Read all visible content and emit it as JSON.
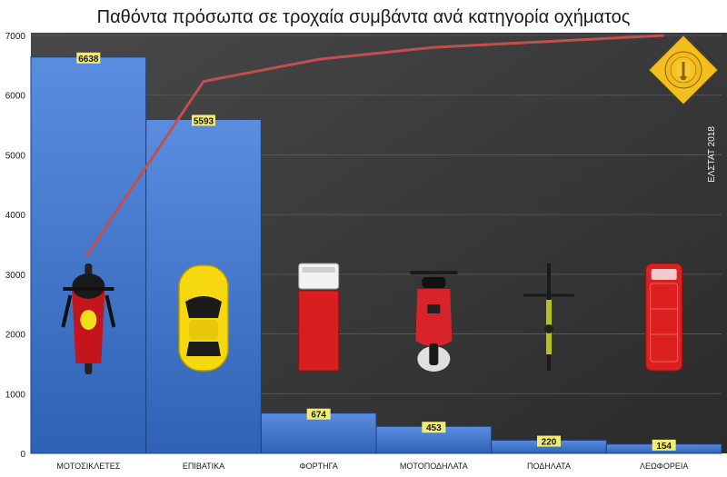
{
  "chart_data": {
    "type": "bar",
    "title": "Παθόντα πρόσωπα σε τροχαία συμβάντα ανά κατηγορία οχήματος",
    "categories": [
      "ΜΟΤΟΣΙΚΛΕΤΕΣ",
      "ΕΠΙΒΑΤΙΚΑ",
      "ΦΟΡΤΗΓΑ",
      "ΜΟΤΟΠΟΔΗΛΑΤΑ",
      "ΠΟΔΗΛΑΤΑ",
      "ΛΕΩΦΟΡΕΙΑ"
    ],
    "values": [
      6638,
      5593,
      674,
      453,
      220,
      154
    ],
    "cumulative_line": [
      3300,
      6230,
      6600,
      6800,
      6900,
      7000
    ],
    "ylim": [
      0,
      7000
    ],
    "yticks": [
      0,
      1000,
      2000,
      3000,
      4000,
      5000,
      6000,
      7000
    ],
    "ytick_labels": [
      "0",
      "1000",
      "2000",
      "3000",
      "4000",
      "5000",
      "6000",
      "7000"
    ],
    "xlabel": "",
    "ylabel": "",
    "source_note": "ΕΛΣΤΑΤ 2018",
    "vehicle_icons": [
      "motorcycle-icon",
      "car-icon",
      "truck-icon",
      "scooter-icon",
      "bicycle-icon",
      "bus-icon"
    ],
    "colors": {
      "bar": "#4a7fd0",
      "bar_edge": "#1c3f86",
      "line": "#c0504d",
      "background": "#3c3c3c",
      "label_box": "#f3ec73"
    }
  }
}
